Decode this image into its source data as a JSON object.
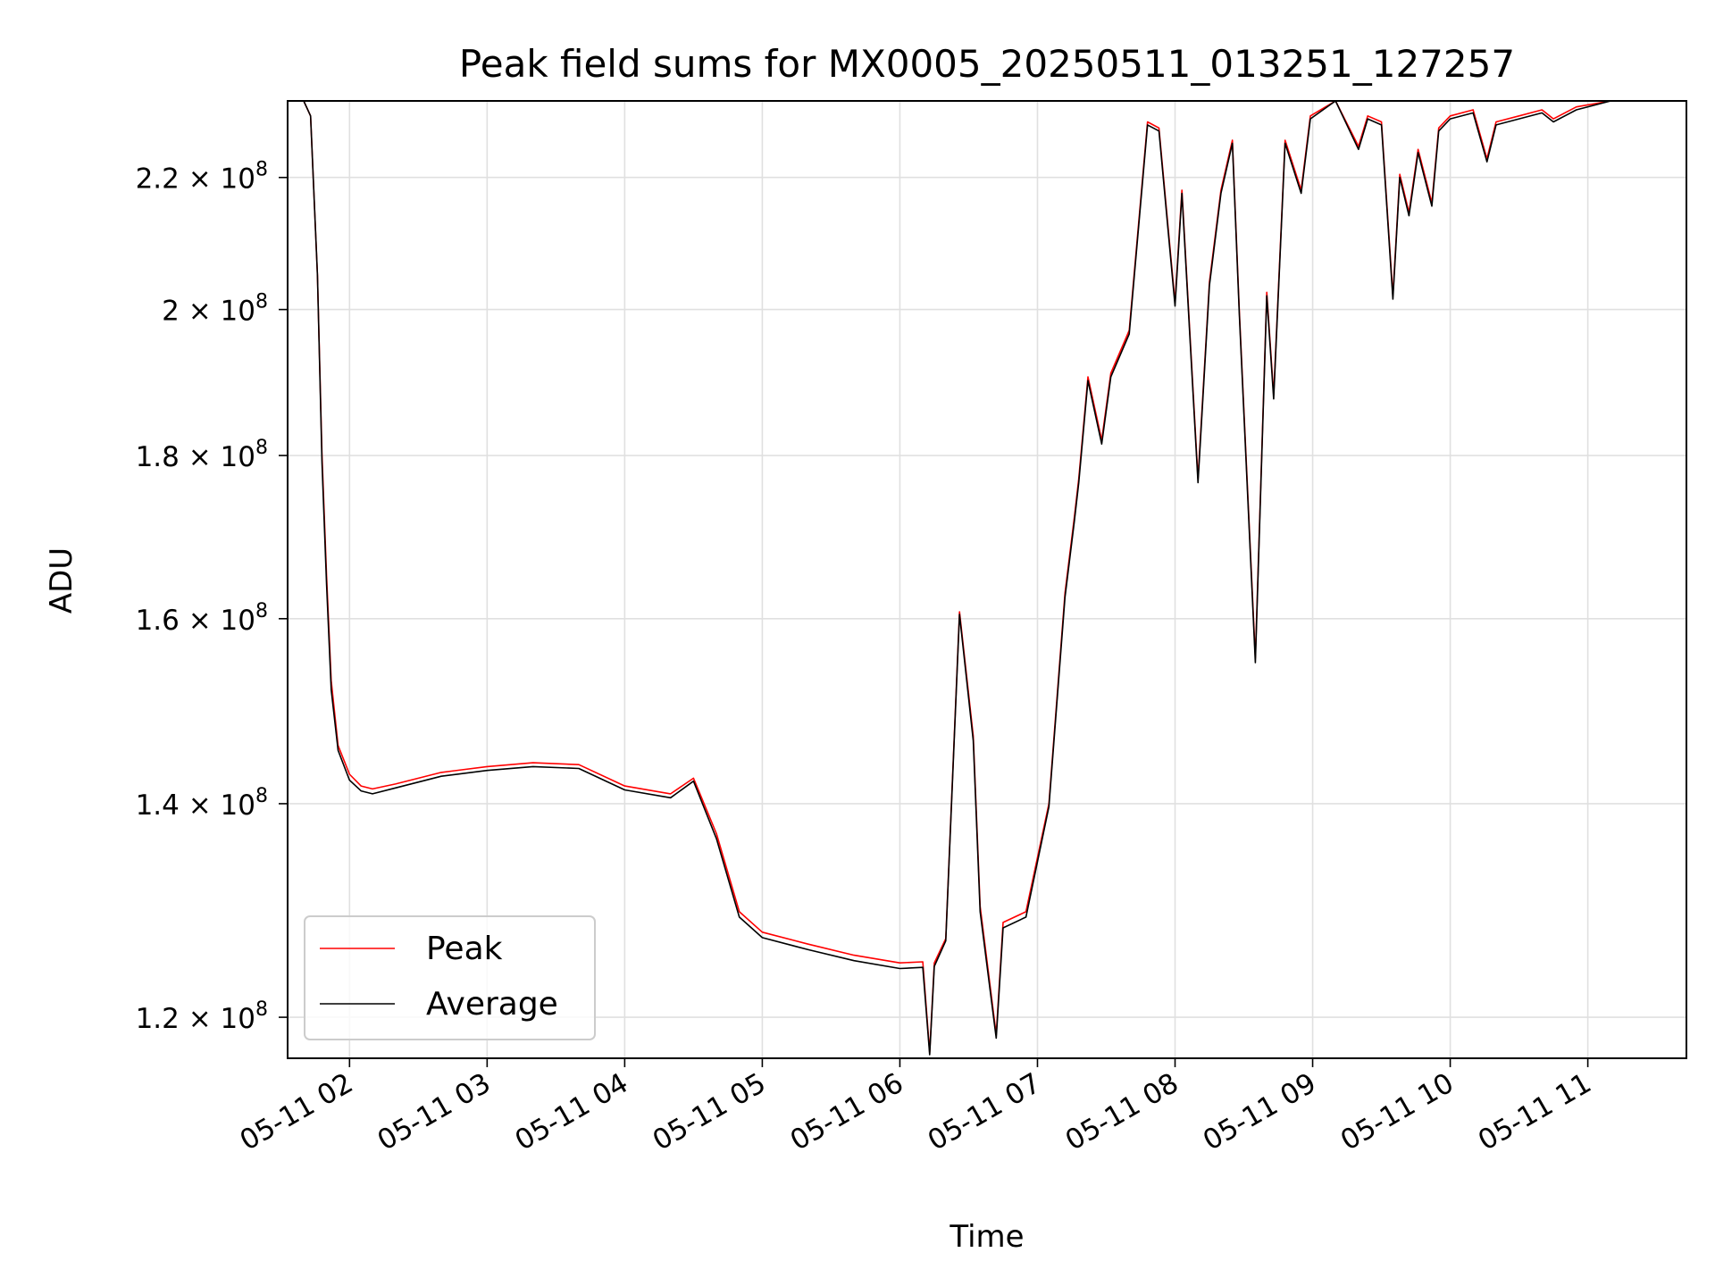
{
  "chart_data": {
    "type": "line",
    "title": "Peak field sums for MX0005_20250511_013251_127257",
    "xlabel": "Time",
    "ylabel": "ADU",
    "y_scale": "log",
    "ylim": [
      116500000,
      232500000
    ],
    "xlim": [
      "2025-05-11 01:33",
      "2025-05-11 11:43"
    ],
    "grid": true,
    "legend": {
      "placement": "lower-left",
      "entries": [
        "Peak",
        "Average"
      ]
    },
    "x_ticks": [
      {
        "x": "2025-05-11 02:00",
        "label": "05-11 02"
      },
      {
        "x": "2025-05-11 03:00",
        "label": "05-11 03"
      },
      {
        "x": "2025-05-11 04:00",
        "label": "05-11 04"
      },
      {
        "x": "2025-05-11 05:00",
        "label": "05-11 05"
      },
      {
        "x": "2025-05-11 06:00",
        "label": "05-11 06"
      },
      {
        "x": "2025-05-11 07:00",
        "label": "05-11 07"
      },
      {
        "x": "2025-05-11 08:00",
        "label": "05-11 08"
      },
      {
        "x": "2025-05-11 09:00",
        "label": "05-11 09"
      },
      {
        "x": "2025-05-11 10:00",
        "label": "05-11 10"
      },
      {
        "x": "2025-05-11 11:00",
        "label": "05-11 11"
      }
    ],
    "y_ticks": [
      {
        "value": 120000000,
        "mant": "1.2"
      },
      {
        "value": 140000000,
        "mant": "1.4"
      },
      {
        "value": 160000000,
        "mant": "1.6"
      },
      {
        "value": 180000000,
        "mant": "1.8"
      },
      {
        "value": 200000000,
        "mant": "2"
      },
      {
        "value": 220000000,
        "mant": "2.2"
      }
    ],
    "y_tick_suffix": "× 10",
    "y_tick_exponent": "8",
    "series": [
      {
        "name": "Peak",
        "color": "#ff0000",
        "x": [
          "2025-05-11 01:33",
          "2025-05-11 01:40",
          "2025-05-11 01:43",
          "2025-05-11 01:46",
          "2025-05-11 01:48",
          "2025-05-11 01:50",
          "2025-05-11 01:52",
          "2025-05-11 01:55",
          "2025-05-11 02:00",
          "2025-05-11 02:05",
          "2025-05-11 02:10",
          "2025-05-11 02:20",
          "2025-05-11 02:40",
          "2025-05-11 03:00",
          "2025-05-11 03:20",
          "2025-05-11 03:40",
          "2025-05-11 04:00",
          "2025-05-11 04:20",
          "2025-05-11 04:30",
          "2025-05-11 04:40",
          "2025-05-11 04:50",
          "2025-05-11 05:00",
          "2025-05-11 05:20",
          "2025-05-11 05:40",
          "2025-05-11 06:00",
          "2025-05-11 06:10",
          "2025-05-11 06:13",
          "2025-05-11 06:15",
          "2025-05-11 06:20",
          "2025-05-11 06:26",
          "2025-05-11 06:32",
          "2025-05-11 06:35",
          "2025-05-11 06:42",
          "2025-05-11 06:45",
          "2025-05-11 06:55",
          "2025-05-11 07:05",
          "2025-05-11 07:12",
          "2025-05-11 07:16",
          "2025-05-11 07:18",
          "2025-05-11 07:22",
          "2025-05-11 07:28",
          "2025-05-11 07:32",
          "2025-05-11 07:40",
          "2025-05-11 07:48",
          "2025-05-11 07:53",
          "2025-05-11 08:00",
          "2025-05-11 08:03",
          "2025-05-11 08:10",
          "2025-05-11 08:15",
          "2025-05-11 08:20",
          "2025-05-11 08:25",
          "2025-05-11 08:28",
          "2025-05-11 08:35",
          "2025-05-11 08:40",
          "2025-05-11 08:43",
          "2025-05-11 08:48",
          "2025-05-11 08:55",
          "2025-05-11 08:59",
          "2025-05-11 09:10",
          "2025-05-11 09:20",
          "2025-05-11 09:24",
          "2025-05-11 09:30",
          "2025-05-11 09:35",
          "2025-05-11 09:38",
          "2025-05-11 09:42",
          "2025-05-11 09:46",
          "2025-05-11 09:52",
          "2025-05-11 09:55",
          "2025-05-11 10:00",
          "2025-05-11 10:10",
          "2025-05-11 10:16",
          "2025-05-11 10:20",
          "2025-05-11 10:30",
          "2025-05-11 10:40",
          "2025-05-11 10:45",
          "2025-05-11 10:55",
          "2025-05-11 11:10",
          "2025-05-11 11:43"
        ],
        "values": [
          232500000,
          232500000,
          230000000,
          205000000,
          180000000,
          165000000,
          153000000,
          146000000,
          143000000,
          141800000,
          141500000,
          142000000,
          143200000,
          143800000,
          144200000,
          144000000,
          141800000,
          141000000,
          142600000,
          137000000,
          129500000,
          127600000,
          126500000,
          125500000,
          124800000,
          124900000,
          117000000,
          124800000,
          127000000,
          160800000,
          147000000,
          130000000,
          118500000,
          128500000,
          129500000,
          140000000,
          163000000,
          172000000,
          177000000,
          190500000,
          182000000,
          191000000,
          197000000,
          229000000,
          228000000,
          201000000,
          218000000,
          177000000,
          204000000,
          218000000,
          226000000,
          200000000,
          155500000,
          202500000,
          188000000,
          226000000,
          218000000,
          230000000,
          232500000,
          225000000,
          230000000,
          229000000,
          202000000,
          220500000,
          214500000,
          224500000,
          216000000,
          228000000,
          230000000,
          231000000,
          223000000,
          229000000,
          230000000,
          231000000,
          229500000,
          231500000,
          232500000,
          232500000
        ]
      },
      {
        "name": "Average",
        "color": "#000000",
        "x": [
          "2025-05-11 01:33",
          "2025-05-11 01:40",
          "2025-05-11 01:43",
          "2025-05-11 01:46",
          "2025-05-11 01:48",
          "2025-05-11 01:50",
          "2025-05-11 01:52",
          "2025-05-11 01:55",
          "2025-05-11 02:00",
          "2025-05-11 02:05",
          "2025-05-11 02:10",
          "2025-05-11 02:20",
          "2025-05-11 02:40",
          "2025-05-11 03:00",
          "2025-05-11 03:20",
          "2025-05-11 03:40",
          "2025-05-11 04:00",
          "2025-05-11 04:20",
          "2025-05-11 04:30",
          "2025-05-11 04:40",
          "2025-05-11 04:50",
          "2025-05-11 05:00",
          "2025-05-11 05:20",
          "2025-05-11 05:40",
          "2025-05-11 06:00",
          "2025-05-11 06:10",
          "2025-05-11 06:13",
          "2025-05-11 06:15",
          "2025-05-11 06:20",
          "2025-05-11 06:26",
          "2025-05-11 06:32",
          "2025-05-11 06:35",
          "2025-05-11 06:42",
          "2025-05-11 06:45",
          "2025-05-11 06:55",
          "2025-05-11 07:05",
          "2025-05-11 07:12",
          "2025-05-11 07:16",
          "2025-05-11 07:18",
          "2025-05-11 07:22",
          "2025-05-11 07:28",
          "2025-05-11 07:32",
          "2025-05-11 07:40",
          "2025-05-11 07:48",
          "2025-05-11 07:53",
          "2025-05-11 08:00",
          "2025-05-11 08:03",
          "2025-05-11 08:10",
          "2025-05-11 08:15",
          "2025-05-11 08:20",
          "2025-05-11 08:25",
          "2025-05-11 08:28",
          "2025-05-11 08:35",
          "2025-05-11 08:40",
          "2025-05-11 08:43",
          "2025-05-11 08:48",
          "2025-05-11 08:55",
          "2025-05-11 08:59",
          "2025-05-11 09:10",
          "2025-05-11 09:20",
          "2025-05-11 09:24",
          "2025-05-11 09:30",
          "2025-05-11 09:35",
          "2025-05-11 09:38",
          "2025-05-11 09:42",
          "2025-05-11 09:46",
          "2025-05-11 09:52",
          "2025-05-11 09:55",
          "2025-05-11 10:00",
          "2025-05-11 10:10",
          "2025-05-11 10:16",
          "2025-05-11 10:20",
          "2025-05-11 10:30",
          "2025-05-11 10:40",
          "2025-05-11 10:45",
          "2025-05-11 10:55",
          "2025-05-11 11:10",
          "2025-05-11 11:43"
        ],
        "values": [
          232500000,
          232500000,
          230000000,
          205000000,
          179000000,
          164000000,
          152000000,
          145500000,
          142400000,
          141300000,
          141000000,
          141600000,
          142800000,
          143400000,
          143800000,
          143600000,
          141400000,
          140600000,
          142300000,
          136500000,
          129000000,
          127100000,
          126000000,
          125000000,
          124300000,
          124400000,
          116800000,
          124500000,
          126800000,
          160500000,
          146500000,
          129500000,
          118200000,
          128000000,
          129000000,
          139700000,
          162500000,
          171500000,
          176500000,
          190000000,
          181500000,
          190500000,
          196500000,
          228500000,
          227500000,
          200500000,
          217500000,
          176500000,
          203500000,
          217500000,
          225500000,
          199500000,
          155000000,
          202000000,
          187500000,
          225500000,
          217500000,
          229500000,
          232500000,
          224500000,
          229500000,
          228500000,
          201500000,
          220000000,
          214000000,
          224000000,
          215500000,
          227500000,
          229500000,
          230500000,
          222500000,
          228500000,
          229500000,
          230500000,
          229000000,
          231000000,
          232500000,
          232500000
        ]
      }
    ]
  }
}
